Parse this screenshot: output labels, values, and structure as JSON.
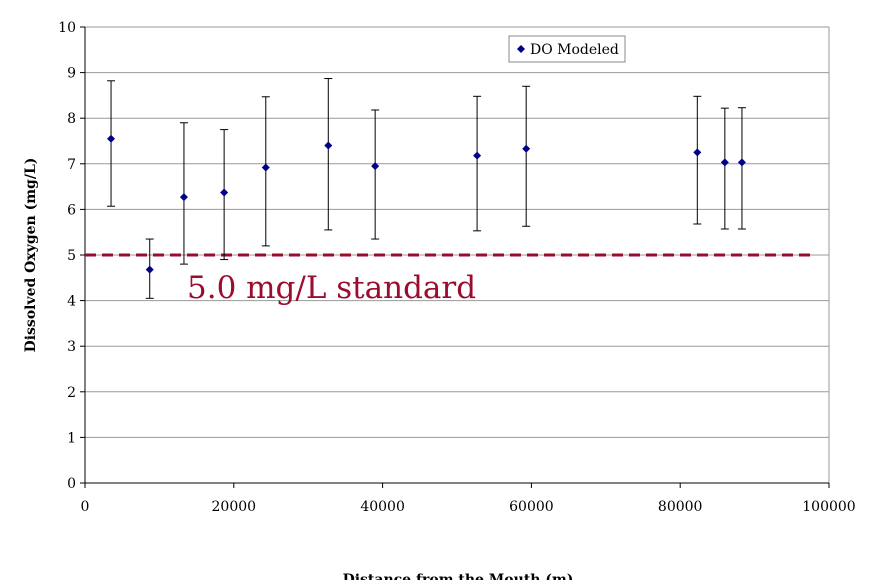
{
  "chart_data": {
    "type": "scatter",
    "title": "",
    "xlabel": "Distance from the Mouth (m)",
    "ylabel": "Dissolved Oxygen (mg/L)",
    "xlim": [
      0,
      100000
    ],
    "ylim": [
      0,
      10
    ],
    "x_ticks": [
      0,
      20000,
      40000,
      60000,
      80000,
      100000
    ],
    "y_ticks": [
      0,
      1,
      2,
      3,
      4,
      5,
      6,
      7,
      8,
      9,
      10
    ],
    "grid": "horizontal",
    "legend_position": "top-right",
    "series": [
      {
        "name": "DO Modeled",
        "color": "#00008B",
        "marker": "diamond",
        "points": [
          {
            "x": 3500,
            "y": 7.55,
            "err_low": 6.07,
            "err_high": 8.82
          },
          {
            "x": 8700,
            "y": 4.68,
            "err_low": 4.05,
            "err_high": 5.35
          },
          {
            "x": 13300,
            "y": 6.27,
            "err_low": 4.8,
            "err_high": 7.9
          },
          {
            "x": 18700,
            "y": 6.37,
            "err_low": 4.9,
            "err_high": 7.75
          },
          {
            "x": 24300,
            "y": 6.92,
            "err_low": 5.2,
            "err_high": 8.47
          },
          {
            "x": 32700,
            "y": 7.4,
            "err_low": 5.55,
            "err_high": 8.87
          },
          {
            "x": 39000,
            "y": 6.95,
            "err_low": 5.35,
            "err_high": 8.18
          },
          {
            "x": 52700,
            "y": 7.18,
            "err_low": 5.53,
            "err_high": 8.48
          },
          {
            "x": 59300,
            "y": 7.33,
            "err_low": 5.63,
            "err_high": 8.7
          },
          {
            "x": 82300,
            "y": 7.25,
            "err_low": 5.68,
            "err_high": 8.48
          },
          {
            "x": 86000,
            "y": 7.03,
            "err_low": 5.57,
            "err_high": 8.22
          },
          {
            "x": 88300,
            "y": 7.03,
            "err_low": 5.57,
            "err_high": 8.23
          }
        ]
      }
    ],
    "reference_line": {
      "value": 5.0,
      "label": "5.0 mg/L standard",
      "color": "#9B0D2E",
      "style": "dashed"
    }
  }
}
